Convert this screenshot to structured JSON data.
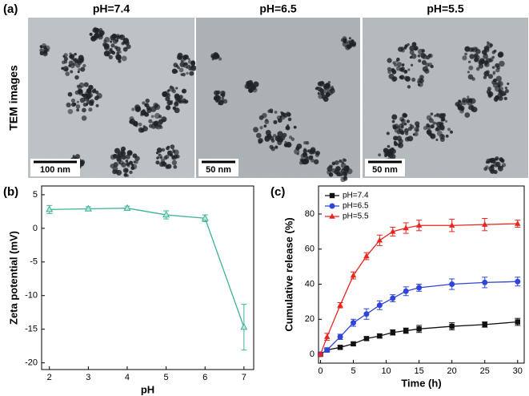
{
  "panel_a": {
    "label": "(a)",
    "ylabel": "TEM images",
    "images": [
      {
        "title": "pH=7.4",
        "scale_bar": "100 nm"
      },
      {
        "title": "pH=6.5",
        "scale_bar": "50 nm"
      },
      {
        "title": "pH=5.5",
        "scale_bar": "50 nm"
      }
    ]
  },
  "chart_data": [
    {
      "type": "line",
      "panel_label": "(b)",
      "xlabel": "pH",
      "ylabel": "Zeta potential (mV)",
      "x": [
        2,
        3,
        4,
        5,
        6,
        7
      ],
      "values": [
        2.8,
        2.9,
        3.0,
        2.0,
        1.5,
        -14.7
      ],
      "errors": [
        0.6,
        0.3,
        0.3,
        0.6,
        0.5,
        3.4
      ],
      "color": "#3cb39a",
      "marker": "triangle-open",
      "xlim": [
        1.8,
        7.25
      ],
      "xticks": [
        2,
        3,
        4,
        5,
        6,
        7
      ],
      "ylim": [
        -21,
        6.3
      ],
      "yticks": [
        5,
        0,
        -5,
        -10,
        -15,
        -20
      ]
    },
    {
      "type": "line",
      "panel_label": "(c)",
      "xlabel": "Time (h)",
      "ylabel": "Cumulative release (%)",
      "x": [
        0,
        1,
        3,
        5,
        7,
        9,
        11,
        13,
        15,
        20,
        25,
        30
      ],
      "series": [
        {
          "name": "pH=7.4",
          "color": "#111111",
          "marker": "square",
          "values": [
            0,
            2.5,
            4,
            6,
            9,
            10.5,
            12.5,
            13.5,
            14.5,
            16,
            17,
            18.5
          ],
          "errors": [
            0.5,
            1,
            1,
            1,
            1,
            1.2,
            1.5,
            1.5,
            2,
            2,
            1.5,
            2
          ]
        },
        {
          "name": "pH=6.5",
          "color": "#2f45d8",
          "marker": "circle",
          "values": [
            0,
            2.5,
            10,
            18,
            23,
            28,
            32,
            36,
            38,
            40,
            41,
            41.5
          ],
          "errors": [
            0.5,
            1,
            1.5,
            2,
            3,
            2.5,
            2,
            2.5,
            2,
            3,
            3,
            2.5
          ]
        },
        {
          "name": "pH=5.5",
          "color": "#e8251f",
          "marker": "triangle",
          "values": [
            0,
            10,
            28,
            45,
            56,
            65,
            70,
            72,
            73.5,
            73.5,
            74,
            74.5
          ],
          "errors": [
            0.5,
            2,
            1.5,
            2,
            2,
            3,
            2.5,
            3,
            3,
            3.5,
            3.5,
            2
          ]
        }
      ],
      "legend": "upper left",
      "xlim": [
        -0.3,
        31
      ],
      "xticks": [
        0,
        5,
        10,
        15,
        20,
        25,
        30
      ],
      "ylim": [
        -5,
        96
      ],
      "yticks": [
        0,
        20,
        40,
        60,
        80
      ]
    }
  ]
}
